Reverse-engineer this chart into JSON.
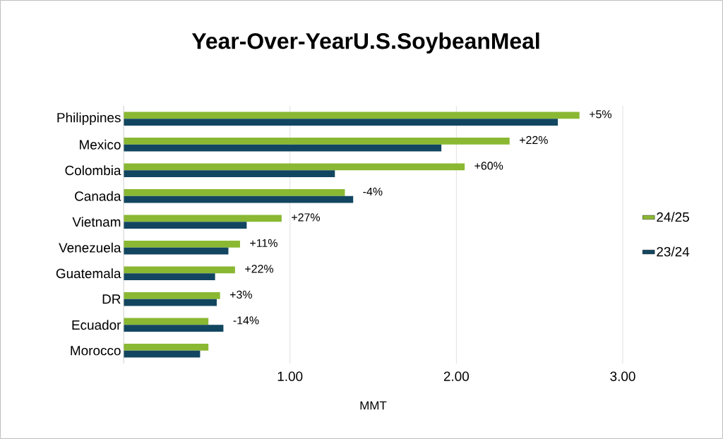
{
  "chart_data": {
    "type": "bar",
    "orientation": "horizontal",
    "title": "Year-Over-YearU.S.SoybeanMeal",
    "xlabel": "MMT",
    "categories": [
      "Philippines",
      "Mexico",
      "Colombia",
      "Canada",
      "Vietnam",
      "Venezuela",
      "Guatemala",
      "DR",
      "Ecuador",
      "Morocco"
    ],
    "series": [
      {
        "name": "24/25",
        "color": "#8ab833",
        "values": [
          2.74,
          2.32,
          2.05,
          1.33,
          0.95,
          0.7,
          0.67,
          0.58,
          0.51,
          0.51
        ]
      },
      {
        "name": "23/24",
        "color": "#124660",
        "values": [
          2.61,
          1.91,
          1.27,
          1.38,
          0.74,
          0.63,
          0.55,
          0.56,
          0.6,
          0.46
        ]
      }
    ],
    "xlim": [
      0,
      3
    ],
    "xticks": [
      {
        "value": 0,
        "label": null
      },
      {
        "value": 1,
        "label": "1.00"
      },
      {
        "value": 2,
        "label": "2.00"
      },
      {
        "value": 3,
        "label": "3.00"
      }
    ],
    "grid": "x",
    "legend": "right",
    "annotations": [
      {
        "text": "+5%",
        "x": 2.74,
        "y": "Philippines"
      },
      {
        "text": "+22%",
        "x": 2.32,
        "y": "Mexico"
      },
      {
        "text": "+60%",
        "x": 2.05,
        "y": "Colombia"
      },
      {
        "text": "-4%",
        "x": 1.38,
        "y": "Canada"
      },
      {
        "text": "+27%",
        "x": 0.95,
        "y": "Vietnam"
      },
      {
        "text": "+11%",
        "x": 0.7,
        "y": "Venezuela"
      },
      {
        "text": "+22%",
        "x": 0.67,
        "y": "Guatemala"
      },
      {
        "text": "+3%",
        "x": 0.58,
        "y": "DR"
      },
      {
        "text": "-14%",
        "x": 0.6,
        "y": "Ecuador"
      }
    ]
  }
}
